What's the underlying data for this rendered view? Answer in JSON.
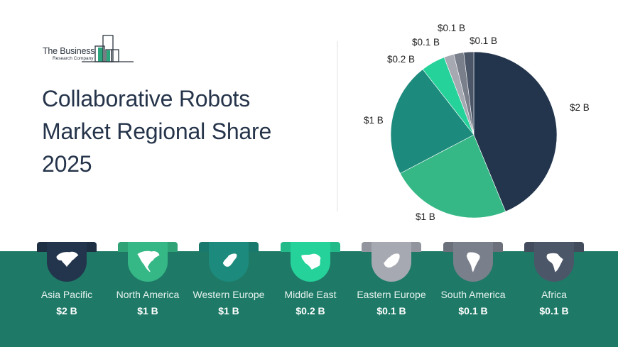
{
  "logo": {
    "line1": "The Business",
    "line2": "Research Company"
  },
  "title": {
    "line1": "Collaborative Robots",
    "line2": "Market Regional Share",
    "line3": "2025"
  },
  "chart_data": {
    "type": "pie",
    "title": "Collaborative Robots Market Regional Share 2025",
    "categories": [
      "Asia Pacific",
      "North America",
      "Western Europe",
      "Middle East",
      "Eastern Europe",
      "South America",
      "Africa"
    ],
    "values": [
      2,
      1,
      1,
      0.2,
      0.1,
      0.1,
      0.1
    ],
    "unit": "$ B",
    "data_labels": [
      "$2 B",
      "$1 B",
      "$1 B",
      "$0.2 B",
      "$0.1 B",
      "$0.1 B",
      "$0.1 B"
    ],
    "colors": [
      "#22354d",
      "#35b886",
      "#1c8a7c",
      "#25d39a",
      "#a6a9b2",
      "#7a7f8c",
      "#4b5668"
    ],
    "start_angle": "12 o'clock, clockwise",
    "legend": "none (regions shown in bottom band)",
    "visual_slice_angles_deg_estimated": [
      158,
      85,
      80,
      17,
      7,
      7,
      7
    ],
    "note": "values are the rounded labels printed in the image; slice angles were measured by eye from the pie and do not exactly match a proportional split of the printed values"
  },
  "regions": [
    {
      "name": "Asia Pacific",
      "value": "$2 B",
      "color": "#22354d",
      "icon": "asia-map-icon"
    },
    {
      "name": "North America",
      "value": "$1 B",
      "color": "#35b886",
      "icon": "north-america-map-icon"
    },
    {
      "name": "Western Europe",
      "value": "$1 B",
      "color": "#1c8a7c",
      "icon": "western-europe-map-icon"
    },
    {
      "name": "Middle East",
      "value": "$0.2 B",
      "color": "#25d39a",
      "icon": "middle-east-map-icon"
    },
    {
      "name": "Eastern Europe",
      "value": "$0.1 B",
      "color": "#a6a9b2",
      "icon": "eastern-europe-map-icon"
    },
    {
      "name": "South America",
      "value": "$0.1 B",
      "color": "#7a7f8c",
      "icon": "south-america-map-icon"
    },
    {
      "name": "Africa",
      "value": "$0.1 B",
      "color": "#4b5668",
      "icon": "africa-map-icon"
    }
  ],
  "colors": {
    "band": "#1e7a67",
    "title": "#25344a"
  }
}
